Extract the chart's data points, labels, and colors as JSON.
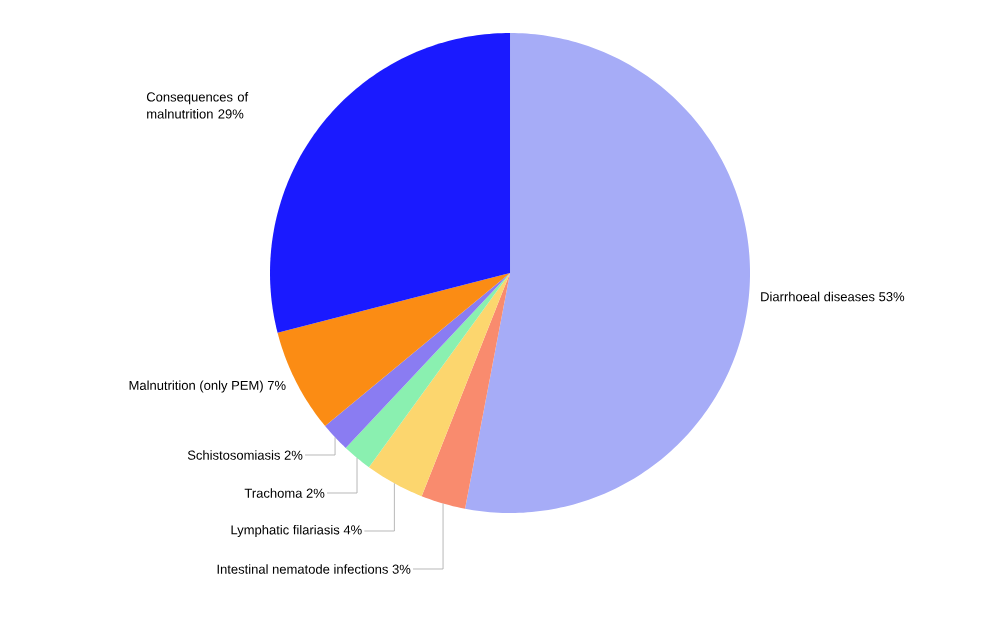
{
  "chart_data": {
    "type": "pie",
    "categories": [
      "Diarrhoeal diseases",
      "Intestinal nematode infections",
      "Lymphatic filariasis",
      "Trachoma",
      "Schistosomiasis",
      "Malnutrition (only PEM)",
      "Consequences of malnutrition"
    ],
    "values": [
      53,
      3,
      4,
      2,
      2,
      7,
      29
    ],
    "value_labels": [
      "53%",
      "3%",
      "4%",
      "2%",
      "2%",
      "7%",
      "29%"
    ],
    "colors": [
      "#a6acf7",
      "#f98b6e",
      "#fcd66e",
      "#8af0b0",
      "#8a7cf2",
      "#fb8c14",
      "#1a1aff"
    ]
  }
}
